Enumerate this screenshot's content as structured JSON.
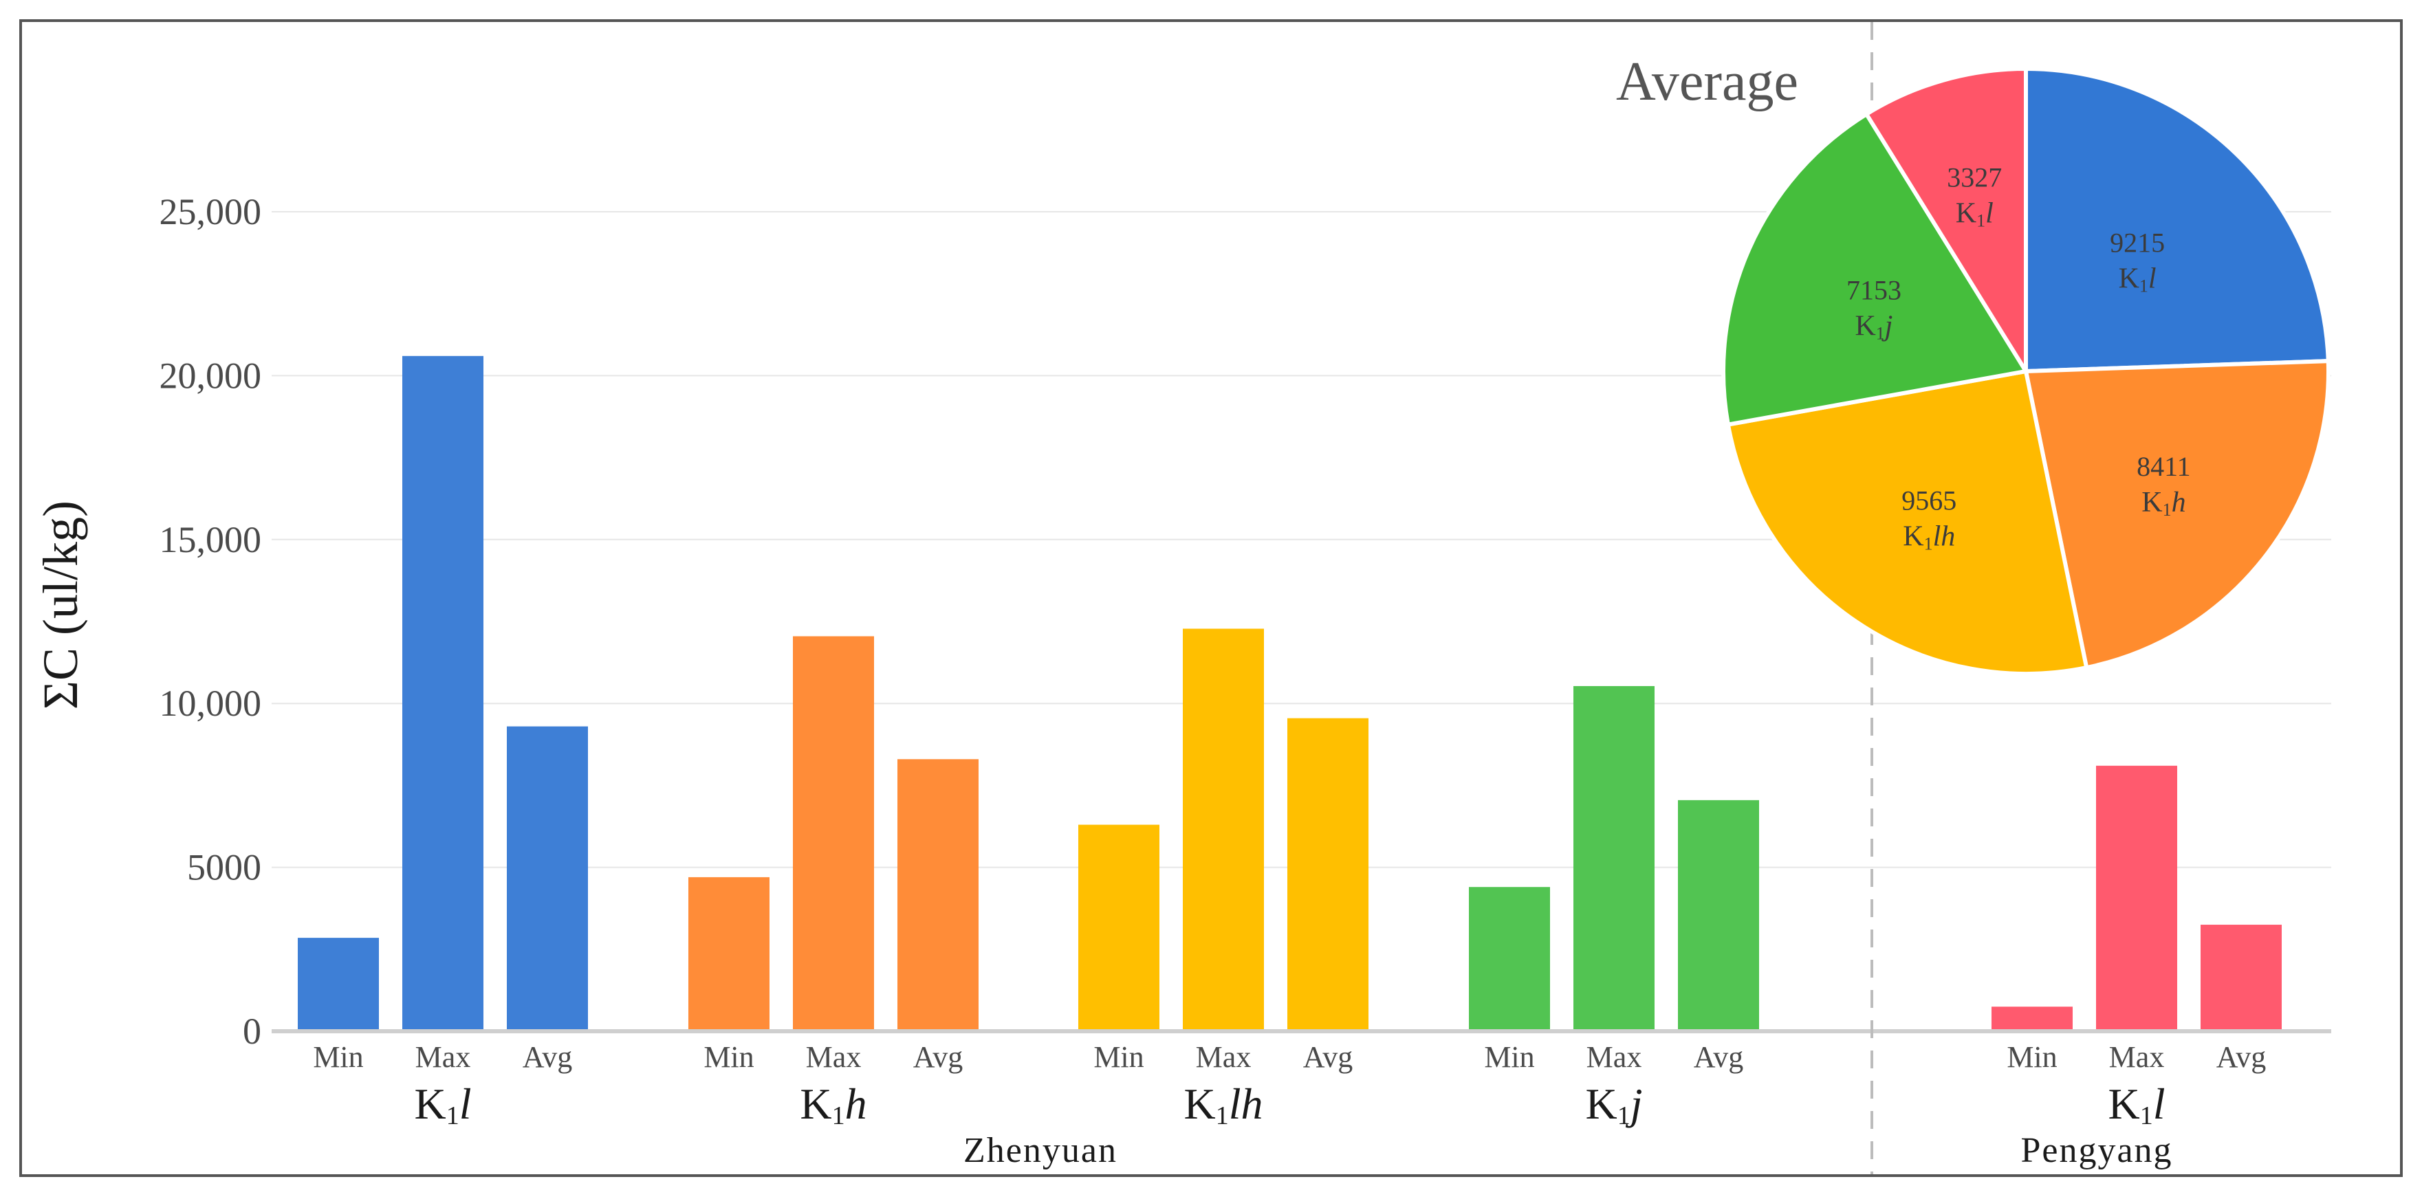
{
  "chart_data": [
    {
      "type": "bar",
      "ylabel": "ΣC (ul/kg)",
      "ylim": [
        0,
        27500
      ],
      "yticks": [
        "0",
        "5000",
        "10,000",
        "15,000",
        "20,000",
        "25,000"
      ],
      "ytick_values": [
        0,
        5000,
        10000,
        15000,
        20000,
        25000
      ],
      "grid": true,
      "categories": [
        "Min",
        "Max",
        "Avg"
      ],
      "groups": [
        {
          "name": "K1l",
          "label_main": "K",
          "label_sub": "1",
          "label_italic": "l",
          "site": "Zhenyuan",
          "color": "#3E7FD6",
          "values": [
            2850,
            20600,
            9300
          ]
        },
        {
          "name": "K1h",
          "label_main": "K",
          "label_sub": "1",
          "label_italic": "h",
          "site": "Zhenyuan",
          "color": "#FF8C38",
          "values": [
            4700,
            12050,
            8300
          ]
        },
        {
          "name": "K1lh",
          "label_main": "K",
          "label_sub": "1",
          "label_italic": "lh",
          "site": "Zhenyuan",
          "color": "#FFBF00",
          "values": [
            6300,
            12280,
            9550
          ]
        },
        {
          "name": "K1j",
          "label_main": "K",
          "label_sub": "1",
          "label_italic": "j",
          "site": "Zhenyuan",
          "color": "#52C452",
          "values": [
            4400,
            10530,
            7050
          ]
        },
        {
          "name": "K1l",
          "label_main": "K",
          "label_sub": "1",
          "label_italic": "l",
          "site": "Pengyang",
          "color": "#FF5A6E",
          "values": [
            750,
            8100,
            3250
          ]
        }
      ],
      "sites": [
        "Zhenyuan",
        "Pengyang"
      ]
    },
    {
      "type": "pie",
      "title": "Average",
      "slices": [
        {
          "value": 9215,
          "label_main": "K",
          "label_sub": "1",
          "label_italic": "l",
          "color": "#3278D4"
        },
        {
          "value": 8411,
          "label_main": "K",
          "label_sub": "1",
          "label_italic": "h",
          "color": "#FF8C2E"
        },
        {
          "value": 9565,
          "label_main": "K",
          "label_sub": "1",
          "label_italic": "lh",
          "color": "#FFBA00"
        },
        {
          "value": 7153,
          "label_main": "K",
          "label_sub": "1",
          "label_italic": "j",
          "color": "#45BE3C"
        },
        {
          "value": 3327,
          "label_main": "K",
          "label_sub": "1",
          "label_italic": "l",
          "color": "#FF5568"
        }
      ]
    }
  ]
}
